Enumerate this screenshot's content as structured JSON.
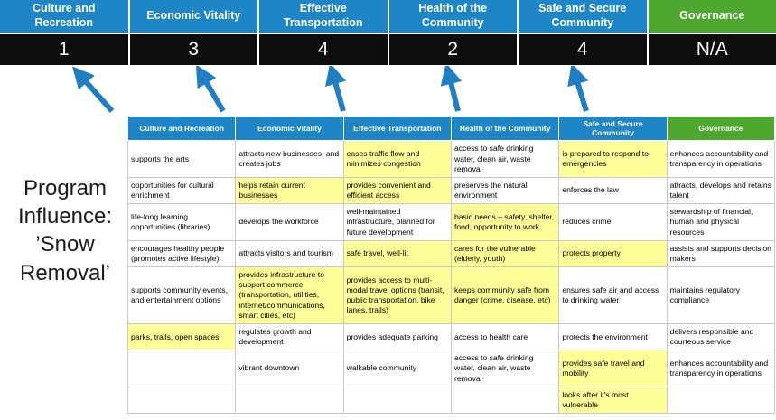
{
  "title": "Program Influence: ’Snow Removal’",
  "summary": {
    "columns": [
      {
        "label": "Culture and Recreation",
        "score": "1",
        "color": "blue"
      },
      {
        "label": "Economic Vitality",
        "score": "3",
        "color": "blue"
      },
      {
        "label": "Effective Transportation",
        "score": "4",
        "color": "blue"
      },
      {
        "label": "Health of the Community",
        "score": "2",
        "color": "blue"
      },
      {
        "label": "Safe and Secure Community",
        "score": "4",
        "color": "blue"
      },
      {
        "label": "Governance",
        "score": "N/A",
        "color": "green"
      }
    ]
  },
  "colors": {
    "header_blue": "#1E86C6",
    "header_green": "#4EA72E",
    "score_band_bg": "#0D0D0D",
    "highlight_yellow": "#FFFF99",
    "arrow_blue": "#1F7EC4"
  },
  "table": {
    "headers": [
      {
        "label": "Culture and Recreation",
        "color": "blue"
      },
      {
        "label": "Economic Vitality",
        "color": "blue"
      },
      {
        "label": "Effective Transportation",
        "color": "blue"
      },
      {
        "label": "Health of the Community",
        "color": "blue"
      },
      {
        "label": "Safe and Secure Community",
        "color": "blue"
      },
      {
        "label": "Governance",
        "color": "green"
      }
    ],
    "rows": [
      [
        {
          "text": "supports the arts",
          "hl": false
        },
        {
          "text": "attracts new businesses, and creates jobs",
          "hl": false
        },
        {
          "text": "eases traffic flow and minimizes congestion",
          "hl": true
        },
        {
          "text": "access to safe drinking water, clean air, waste removal",
          "hl": false
        },
        {
          "text": "is prepared to respond to emergencies",
          "hl": true
        },
        {
          "text": "enhances accountability and transparency in operations",
          "hl": false
        }
      ],
      [
        {
          "text": "opportunities for cultural enrichment",
          "hl": false
        },
        {
          "text": "helps retain current businesses",
          "hl": true
        },
        {
          "text": "provides convenient and efficient access",
          "hl": true
        },
        {
          "text": "preserves the natural environment",
          "hl": false
        },
        {
          "text": "enforces the law",
          "hl": false
        },
        {
          "text": "attracts, develops and retains talent",
          "hl": false
        }
      ],
      [
        {
          "text": "life-long learning opportunities (libraries)",
          "hl": false
        },
        {
          "text": "develops the workforce",
          "hl": false
        },
        {
          "text": "well-maintained infrastructure, planned for future development",
          "hl": false
        },
        {
          "text": "basic needs – safety, shelter, food, opportunity to work",
          "hl": true
        },
        {
          "text": "reduces crime",
          "hl": false
        },
        {
          "text": "stewardship of financial, human and physical resources",
          "hl": false
        }
      ],
      [
        {
          "text": "encourages healthy people (promotes active lifestyle)",
          "hl": false
        },
        {
          "text": "attracts visitors and tourism",
          "hl": false
        },
        {
          "text": "safe travel, well-lit",
          "hl": true
        },
        {
          "text": "cares for the vulnerable (elderly, youth)",
          "hl": true
        },
        {
          "text": "protects property",
          "hl": true
        },
        {
          "text": "assists and supports decision makers",
          "hl": false
        }
      ],
      [
        {
          "text": "supports community events, and entertainment options",
          "hl": false
        },
        {
          "text": "provides infrastructure to support commerce (transportation, utilities, internet/communications, smart cities, etc)",
          "hl": true
        },
        {
          "text": "provides access to multi-modal travel options (transit, public transportation, bike lanes, trails)",
          "hl": true
        },
        {
          "text": "keeps community safe from danger (crime, disease, etc)",
          "hl": true
        },
        {
          "text": "ensures safe air and access to drinking water",
          "hl": false
        },
        {
          "text": "maintains regulatory compliance",
          "hl": false
        }
      ],
      [
        {
          "text": "parks, trails, open spaces",
          "hl": true
        },
        {
          "text": "regulates growth and development",
          "hl": false
        },
        {
          "text": "provides adequate parking",
          "hl": false
        },
        {
          "text": "access to health care",
          "hl": false
        },
        {
          "text": "protects the environment",
          "hl": false
        },
        {
          "text": "delivers responsible and courteous service",
          "hl": false
        }
      ],
      [
        {
          "text": "",
          "hl": false
        },
        {
          "text": "vibrant downtown",
          "hl": false
        },
        {
          "text": "walkable community",
          "hl": false
        },
        {
          "text": "access to safe drinking water, clean air, waste removal",
          "hl": false
        },
        {
          "text": "provides safe travel and mobility",
          "hl": true
        },
        {
          "text": "enhances accountability and transparency in operations",
          "hl": false
        }
      ],
      [
        {
          "text": "",
          "hl": false
        },
        {
          "text": "",
          "hl": false
        },
        {
          "text": "",
          "hl": false
        },
        {
          "text": "",
          "hl": false
        },
        {
          "text": "looks after it's most vulnerable",
          "hl": true
        },
        {
          "text": "",
          "hl": false
        }
      ]
    ]
  }
}
